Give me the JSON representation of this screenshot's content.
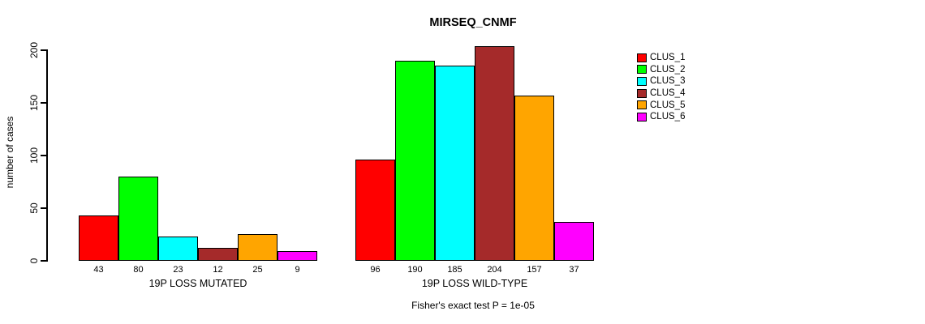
{
  "chart_data": {
    "type": "bar",
    "title": "MIRSEQ_CNMF",
    "ylabel": "number of cases",
    "ylim": [
      0,
      200
    ],
    "yticks": [
      0,
      50,
      100,
      150,
      200
    ],
    "grid": false,
    "legend_position": "right",
    "annotation": "Fisher's exact test P = 1e-05",
    "series_names": [
      "CLUS_1",
      "CLUS_2",
      "CLUS_3",
      "CLUS_4",
      "CLUS_5",
      "CLUS_6"
    ],
    "colors": [
      "#FF0000",
      "#00FF00",
      "#00FFFF",
      "#A52A2A",
      "#FFA500",
      "#FF00FF"
    ],
    "groups": [
      {
        "label": "19P LOSS MUTATED",
        "values": [
          43,
          80,
          23,
          12,
          25,
          9
        ]
      },
      {
        "label": "19P LOSS WILD-TYPE",
        "values": [
          96,
          190,
          185,
          204,
          157,
          37
        ]
      }
    ]
  },
  "legend": {
    "items": [
      {
        "label": "CLUS_1",
        "color": "#FF0000"
      },
      {
        "label": "CLUS_2",
        "color": "#00FF00"
      },
      {
        "label": "CLUS_3",
        "color": "#00FFFF"
      },
      {
        "label": "CLUS_4",
        "color": "#A52A2A"
      },
      {
        "label": "CLUS_5",
        "color": "#FFA500"
      },
      {
        "label": "CLUS_6",
        "color": "#FF00FF"
      }
    ]
  }
}
